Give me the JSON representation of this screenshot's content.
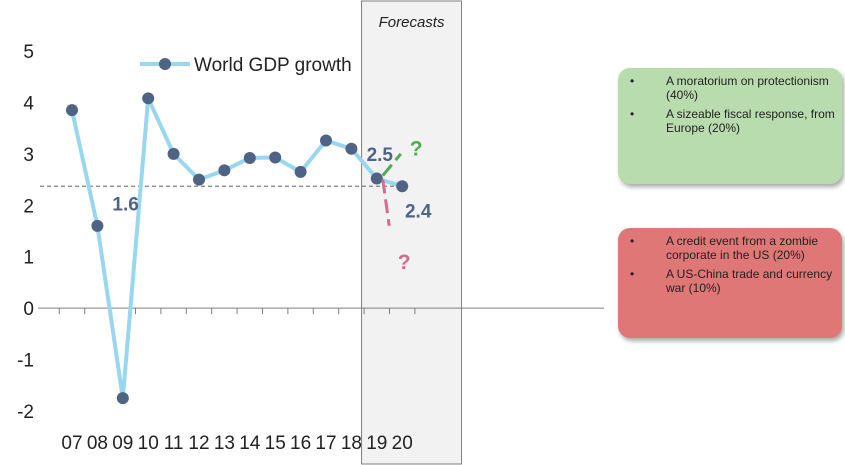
{
  "chart_data": {
    "type": "line",
    "categories": [
      "07",
      "08",
      "09",
      "10",
      "11",
      "12",
      "13",
      "14",
      "15",
      "16",
      "17",
      "18",
      "19",
      "20"
    ],
    "series": [
      {
        "name": "World GDP growth",
        "values": [
          3.85,
          1.6,
          -1.75,
          4.08,
          3.0,
          2.5,
          2.68,
          2.92,
          2.93,
          2.65,
          3.26,
          3.1,
          2.52,
          2.37
        ]
      }
    ],
    "ylim": [
      -2,
      5
    ],
    "yticks": [
      "-2",
      "-1",
      "0",
      "1",
      "2",
      "3",
      "4",
      "5"
    ],
    "reference_line": 2.37,
    "forecast_label": "Forecasts",
    "forecast_start": "19",
    "annotations": {
      "label_08": "1.6",
      "label_19": "2.5",
      "label_20": "2.4",
      "upside_mark": "?",
      "downside_mark": "?"
    },
    "colors": {
      "line": "#99d7f0",
      "marker": "#4f6385",
      "label": "#4f6385",
      "upside": "#4dac53",
      "downside": "#d86a8c",
      "reference": "#808080"
    }
  },
  "callouts": {
    "upside": [
      "A moratorium on protectionism (40%)",
      "A sizeable fiscal response, from Europe (20%)"
    ],
    "downside": [
      "A credit event from a zombie corporate in the US (20%)",
      "A US-China trade and currency war (10%)"
    ],
    "bullet": "•",
    "upside_color": "#b9dcae",
    "downside_color": "#e07777"
  }
}
